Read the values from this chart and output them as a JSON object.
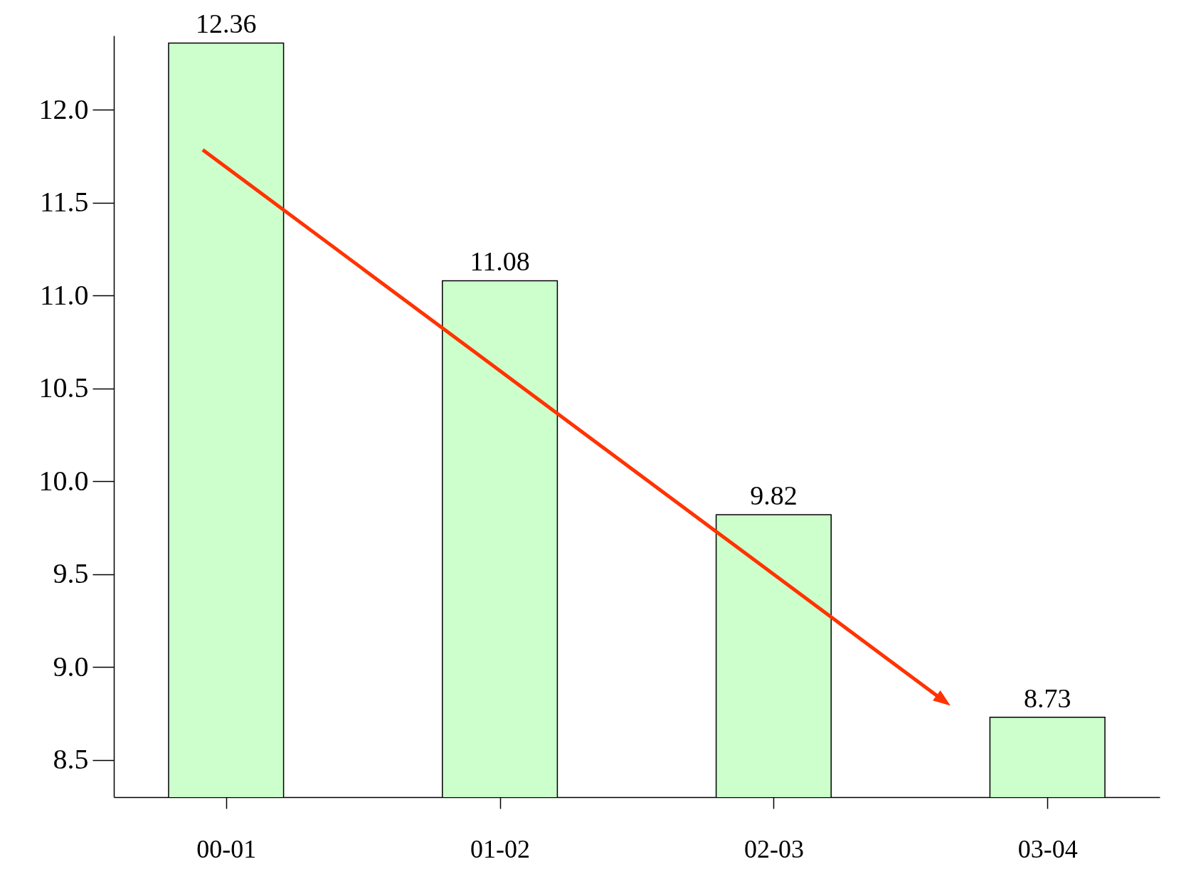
{
  "chart_data": {
    "type": "bar",
    "categories": [
      "00-01",
      "01-02",
      "02-03",
      "03-04"
    ],
    "values": [
      12.36,
      11.08,
      9.82,
      8.73
    ],
    "color": "#ccffcc",
    "ylim": [
      8.3,
      12.4
    ],
    "yticks": [
      {
        "value": 8.5,
        "label": "8.5"
      },
      {
        "value": 9,
        "label": "9.0"
      },
      {
        "value": 9.5,
        "label": "9.5"
      },
      {
        "value": 10,
        "label": "10.0"
      },
      {
        "value": 10.5,
        "label": "10.5"
      },
      {
        "value": 11,
        "label": "11.0"
      },
      {
        "value": 11.5,
        "label": "11.5"
      },
      {
        "value": 12,
        "label": "12.0"
      }
    ],
    "data_labels": true,
    "grid": false
  }
}
